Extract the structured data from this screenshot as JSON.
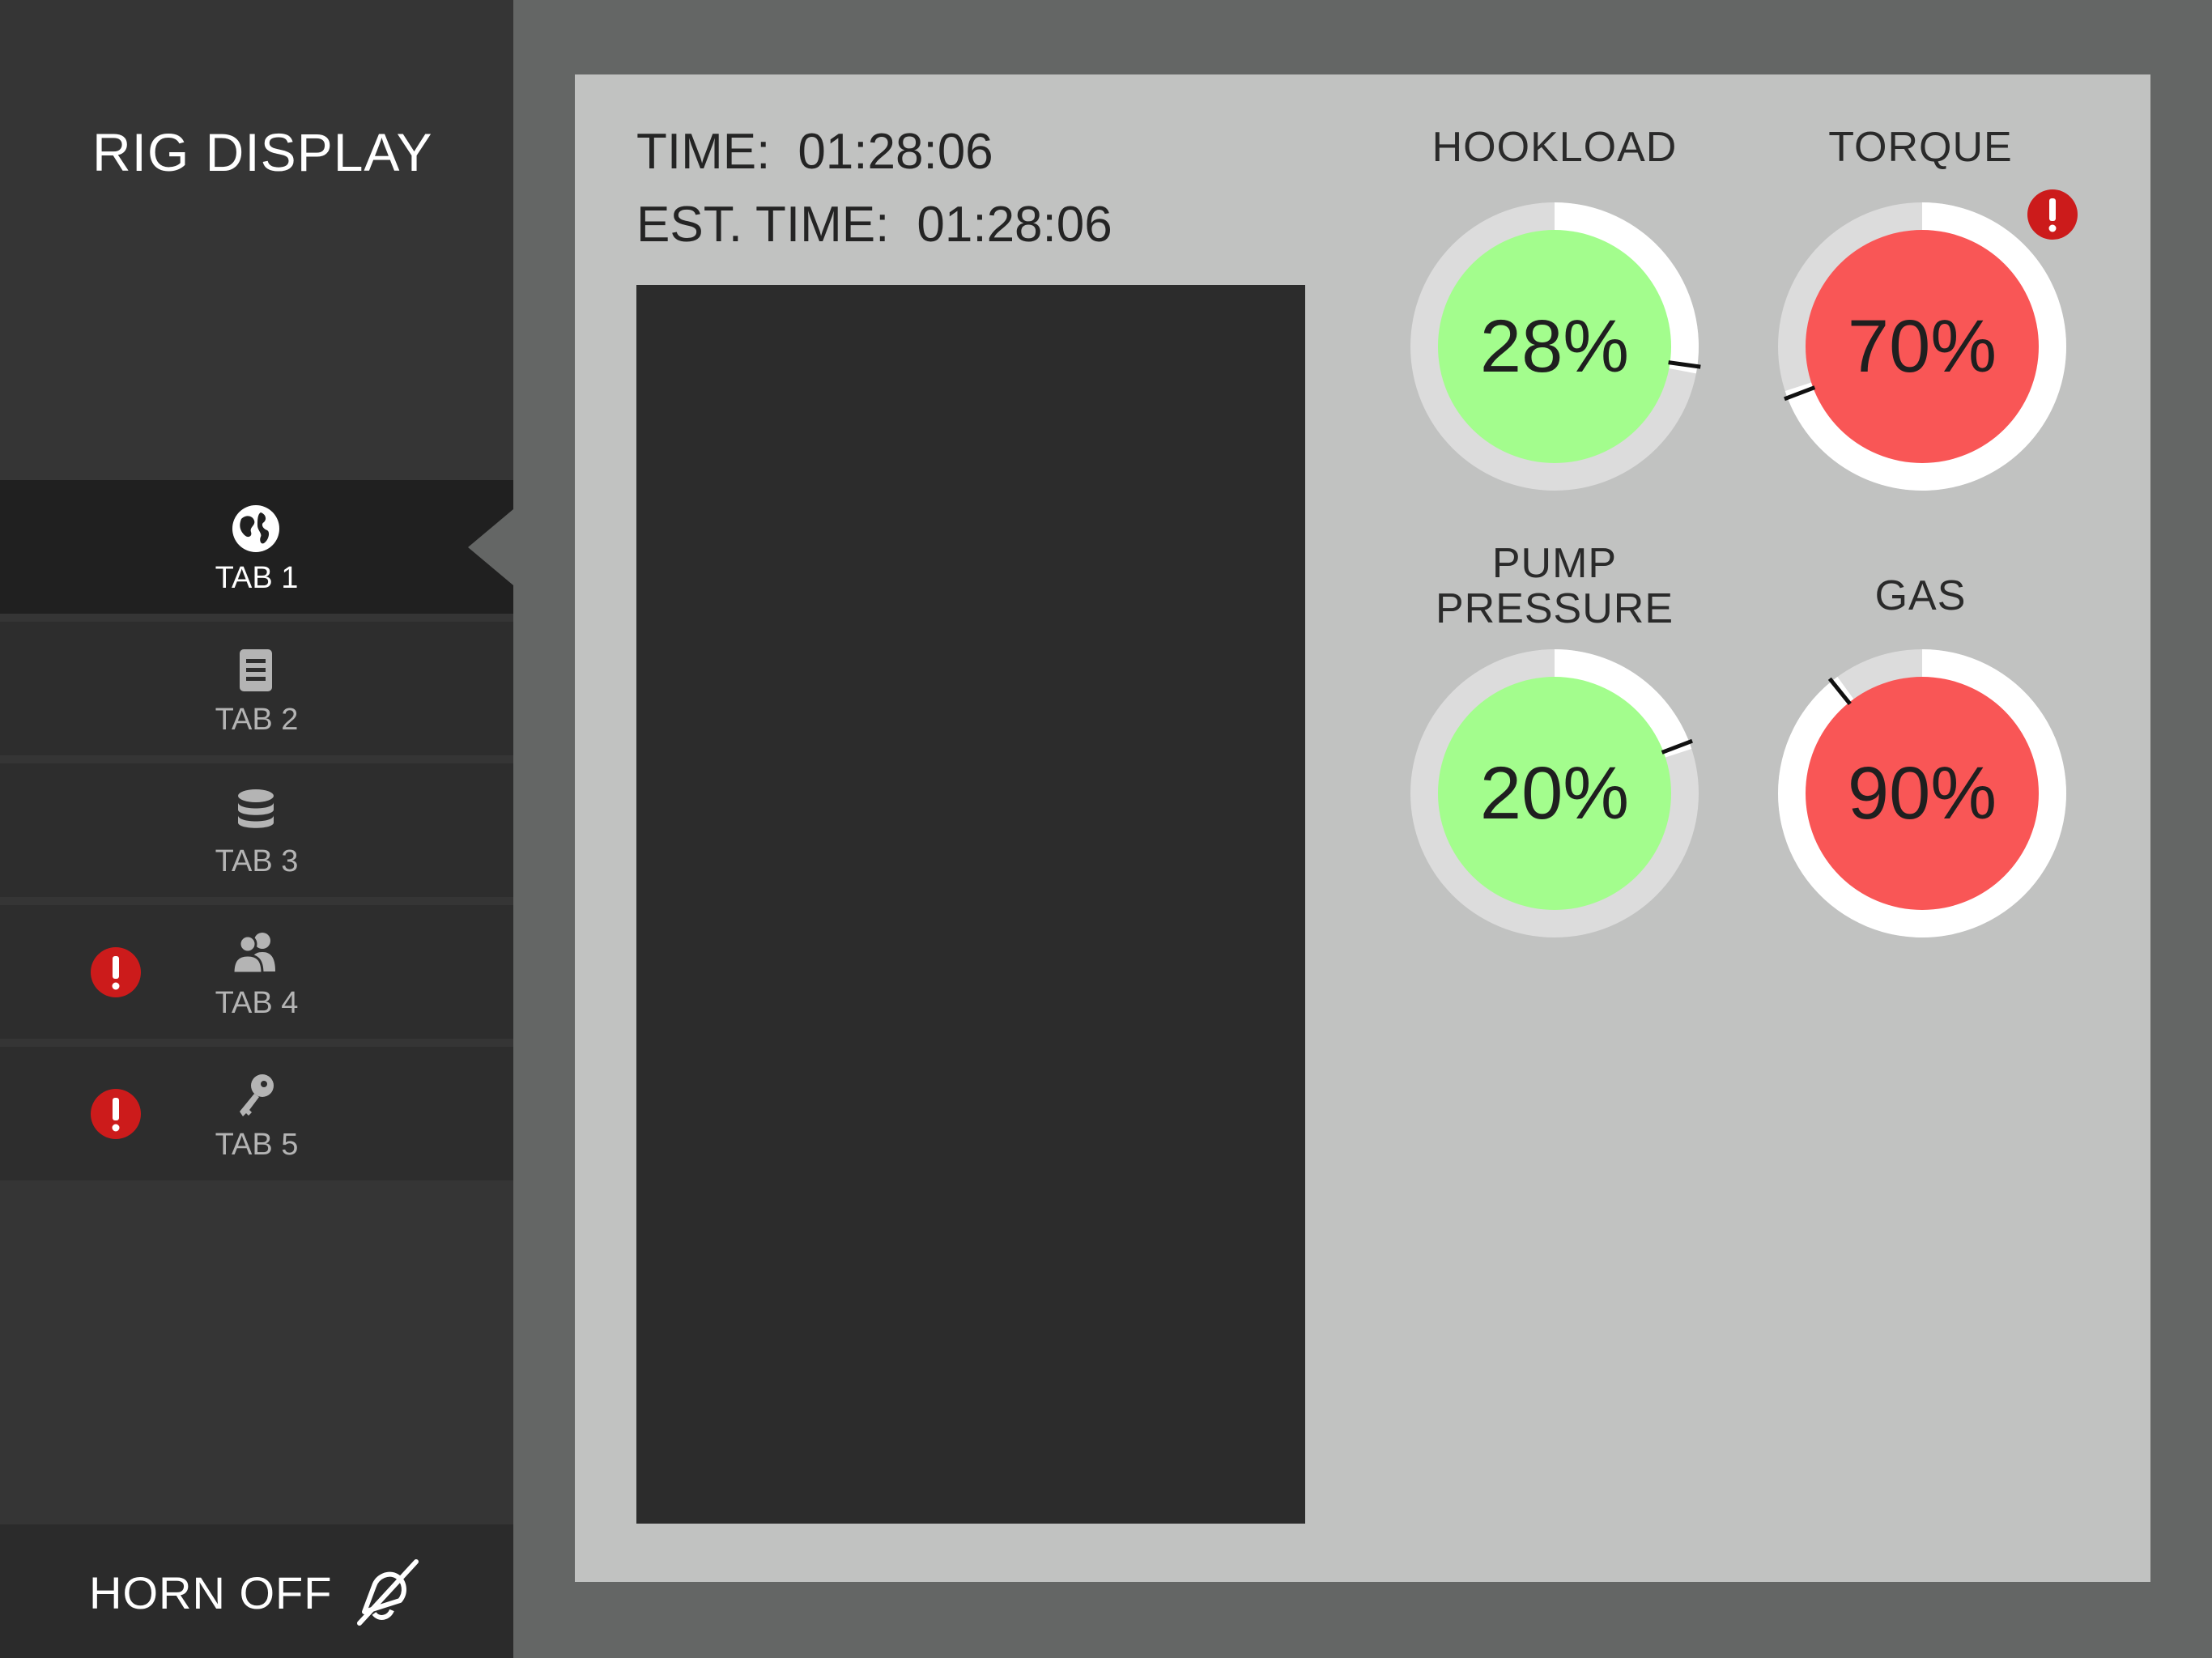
{
  "app": {
    "title": "RIG DISPLAY"
  },
  "tabs": [
    {
      "label": "TAB 1",
      "icon": "globe-icon",
      "active": true,
      "alert": false
    },
    {
      "label": "TAB 2",
      "icon": "document-icon",
      "active": false,
      "alert": false
    },
    {
      "label": "TAB 3",
      "icon": "database-icon",
      "active": false,
      "alert": false
    },
    {
      "label": "TAB 4",
      "icon": "users-icon",
      "active": false,
      "alert": true
    },
    {
      "label": "TAB 5",
      "icon": "key-icon",
      "active": false,
      "alert": true
    }
  ],
  "horn": {
    "label": "HORN OFF",
    "icon": "horn-off-icon"
  },
  "status": {
    "time_label": "TIME:",
    "time_value": "01:28:06",
    "est_label": "EST. TIME:",
    "est_value": "01:28:06"
  },
  "gauges": [
    {
      "title": "HOOKLOAD",
      "value": 28,
      "display": "28%",
      "state": "ok",
      "alert": false
    },
    {
      "title": "TORQUE",
      "value": 70,
      "display": "70%",
      "state": "alarm",
      "alert": true
    },
    {
      "title_lines": [
        "PUMP",
        "PRESSURE"
      ],
      "value": 20,
      "display": "20%",
      "state": "ok",
      "alert": false
    },
    {
      "title": "GAS",
      "value": 90,
      "display": "90%",
      "state": "alarm",
      "alert": false
    }
  ],
  "colors": {
    "sidebar_bg": "#353535",
    "tab_bg": "#2d2d2d",
    "tab_active_bg": "#202020",
    "panel_bg": "#c1c2c1",
    "outer_bg": "#646665",
    "gauge_ok": "#a3fd8d",
    "gauge_alarm": "#f95656",
    "alert_red": "#cc1b1b",
    "gauge_track": "#dcdcdc",
    "gauge_arc": "#ffffff"
  }
}
